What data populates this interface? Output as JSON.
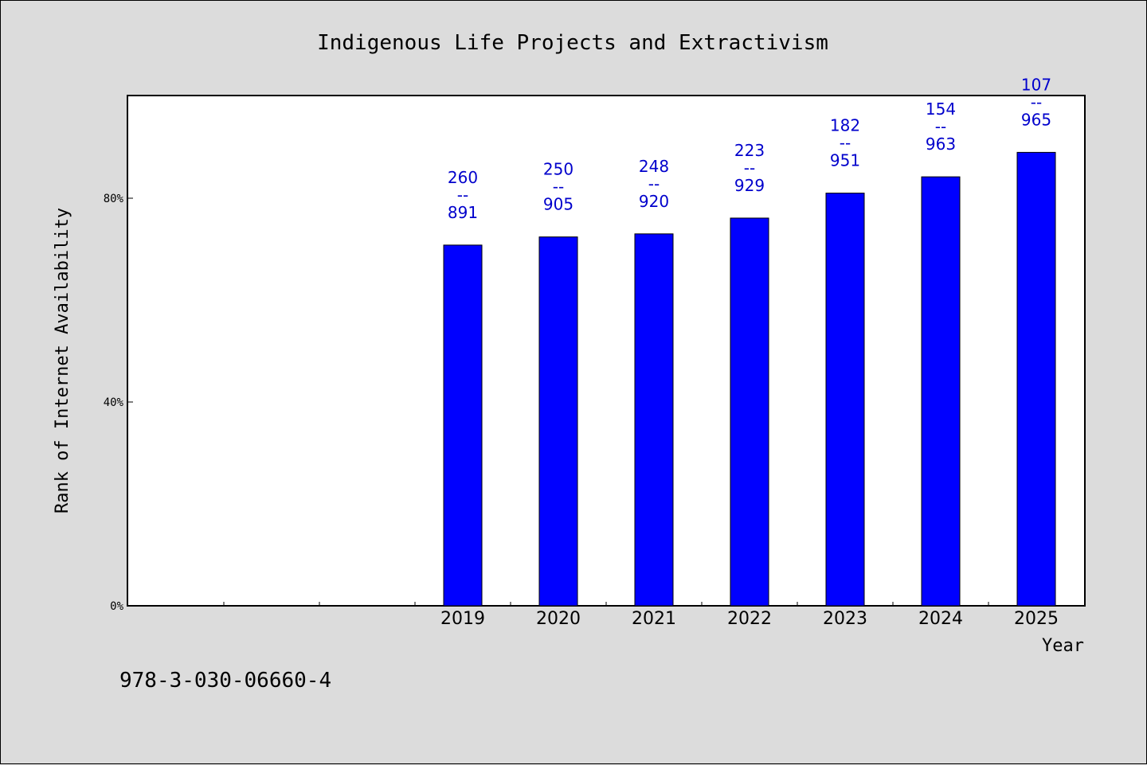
{
  "chart_data": {
    "type": "bar",
    "title": "Indigenous Life Projects and Extractivism",
    "xlabel": "Year",
    "ylabel": "Rank of Internet Availability",
    "categories": [
      "",
      "",
      "",
      "2019",
      "2020",
      "2021",
      "2022",
      "2023",
      "2024",
      "2025"
    ],
    "values": [
      null,
      null,
      null,
      70.8,
      72.4,
      73.0,
      76.1,
      81.0,
      84.2,
      89.0
    ],
    "data_labels": [
      null,
      null,
      null,
      [
        "260",
        "--",
        "891"
      ],
      [
        "250",
        "--",
        "905"
      ],
      [
        "248",
        "--",
        "920"
      ],
      [
        "223",
        "--",
        "929"
      ],
      [
        "182",
        "--",
        "951"
      ],
      [
        "154",
        "--",
        "963"
      ],
      [
        "107",
        "--",
        "965"
      ]
    ],
    "ylim": [
      0,
      100
    ],
    "yticks": [
      0,
      40,
      80
    ],
    "ytick_labels": [
      "0%",
      "40%",
      "80%"
    ],
    "grid": false,
    "bar_color": "#0000ff",
    "label_color": "#0000cc",
    "background": "#dcdcdc"
  },
  "footer_text": "978-3-030-06660-4"
}
